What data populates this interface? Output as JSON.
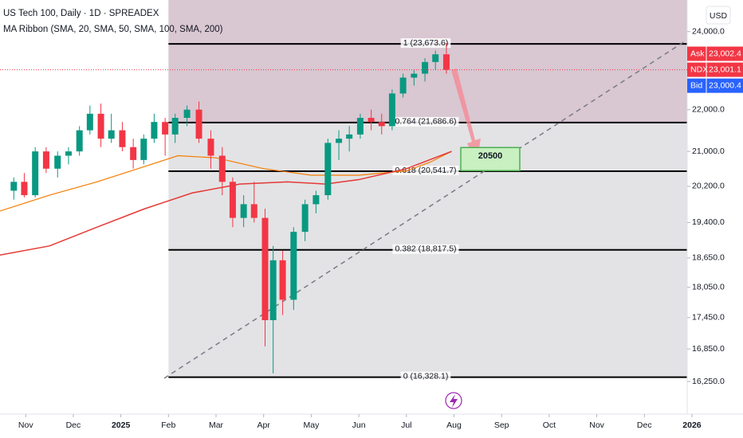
{
  "chart_data": {
    "type": "candlestick",
    "title": "US Tech 100, Daily · 1D · SPREADEX",
    "subtitle": "MA Ribbon (SMA, 20, SMA, 50, SMA, 100, SMA, 200)",
    "currency": "USD",
    "log_scale": true,
    "grid": false,
    "xlim": [
      0.46,
      14.9
    ],
    "ylim": [
      15670,
      24860
    ],
    "xticks": [
      {
        "value": 1,
        "label": "Nov"
      },
      {
        "value": 2,
        "label": "Dec"
      },
      {
        "value": 3,
        "label": "2025"
      },
      {
        "value": 4,
        "label": "Feb"
      },
      {
        "value": 5,
        "label": "Mar"
      },
      {
        "value": 6,
        "label": "Apr"
      },
      {
        "value": 7,
        "label": "May"
      },
      {
        "value": 8,
        "label": "Jun"
      },
      {
        "value": 9,
        "label": "Jul"
      },
      {
        "value": 10,
        "label": "Aug"
      },
      {
        "value": 11,
        "label": "Sep"
      },
      {
        "value": 12,
        "label": "Oct"
      },
      {
        "value": 13,
        "label": "Nov"
      },
      {
        "value": 14,
        "label": "Dec"
      },
      {
        "value": 15,
        "label": "2026"
      }
    ],
    "yticks": [
      {
        "value": 24000,
        "label": "24,000.0"
      },
      {
        "value": 22000,
        "label": "22,000.0"
      },
      {
        "value": 21000,
        "label": "21,000.0"
      },
      {
        "value": 20200,
        "label": "20,200.0"
      },
      {
        "value": 19400,
        "label": "19,400.0"
      },
      {
        "value": 18650,
        "label": "18,650.0"
      },
      {
        "value": 18050,
        "label": "18,050.0"
      },
      {
        "value": 17450,
        "label": "17,450.0"
      },
      {
        "value": 16850,
        "label": "16,850.0"
      },
      {
        "value": 16250,
        "label": "16,250.0"
      }
    ],
    "up_color": "#089981",
    "down_color": "#f23645",
    "x": [
      0.75,
      0.97,
      1.2,
      1.43,
      1.67,
      1.9,
      2.13,
      2.35,
      2.58,
      2.8,
      3.03,
      3.26,
      3.48,
      3.7,
      3.93,
      4.14,
      4.39,
      4.64,
      4.89,
      5.13,
      5.35,
      5.58,
      5.8,
      6.03,
      6.2,
      6.4,
      6.63,
      6.87,
      7.1,
      7.35,
      7.58,
      7.8,
      8.03,
      8.26,
      8.48,
      8.7,
      8.93,
      9.16,
      9.39,
      9.61,
      9.84
    ],
    "open": [
      20100,
      20300,
      20000,
      21000,
      20600,
      20900,
      21000,
      21500,
      21900,
      21300,
      21500,
      21100,
      20800,
      21300,
      21700,
      21400,
      21800,
      22000,
      21300,
      20900,
      20300,
      19500,
      19800,
      19500,
      17400,
      18600,
      17800,
      19200,
      19800,
      20000,
      21200,
      21300,
      21400,
      21800,
      21700,
      21600,
      22400,
      22800,
      22900,
      23200,
      23400
    ],
    "high": [
      20400,
      20500,
      21100,
      21100,
      21000,
      21100,
      21600,
      22100,
      22150,
      21900,
      21700,
      21300,
      21400,
      21900,
      21800,
      21900,
      22100,
      22200,
      21500,
      21100,
      20400,
      20000,
      20300,
      19700,
      18900,
      18800,
      19300,
      19900,
      20100,
      21300,
      21500,
      21600,
      21900,
      22000,
      21900,
      22500,
      22900,
      23000,
      23300,
      23500,
      23700
    ],
    "low": [
      19900,
      19950,
      19950,
      20500,
      20400,
      20700,
      20900,
      21400,
      21100,
      21200,
      21000,
      20600,
      20700,
      21200,
      20900,
      21200,
      21600,
      21200,
      20600,
      20000,
      19300,
      19300,
      19400,
      16900,
      16400,
      17500,
      17600,
      19000,
      19600,
      19900,
      20800,
      21000,
      21300,
      21500,
      21400,
      21500,
      22300,
      22600,
      22700,
      23000,
      22900
    ],
    "close": [
      20300,
      20000,
      21000,
      20600,
      20900,
      21000,
      21500,
      21900,
      21300,
      21500,
      21100,
      20800,
      21300,
      21700,
      21400,
      21800,
      22000,
      21300,
      20900,
      20300,
      19500,
      19800,
      19500,
      17400,
      18600,
      17800,
      19200,
      19800,
      20000,
      21200,
      21300,
      21400,
      21800,
      21700,
      21600,
      22400,
      22800,
      22900,
      23200,
      23400,
      23000
    ],
    "ma_lines": [
      {
        "color": "#f57c00",
        "x": [
          0.46,
          1.5,
          2.5,
          3.5,
          4.2,
          5,
          6,
          7,
          8,
          9,
          9.5,
          9.95
        ],
        "values": [
          19650,
          20000,
          20300,
          20650,
          20900,
          20850,
          20600,
          20450,
          20450,
          20550,
          20750,
          21000
        ]
      },
      {
        "color": "#e53935",
        "x": [
          0.46,
          1.5,
          2.5,
          3.5,
          4.5,
          5.5,
          6.5,
          7.3,
          8,
          9,
          9.95
        ],
        "values": [
          18710,
          18900,
          19300,
          19700,
          20050,
          20250,
          20300,
          20250,
          20350,
          20600,
          21000
        ]
      }
    ],
    "fib": {
      "x_range": [
        4.0,
        14.9
      ],
      "levels": [
        {
          "label": "1 (23,673.6)",
          "value": 23673.6
        },
        {
          "label": "0.764 (21,686.6)",
          "value": 21686.6
        },
        {
          "label": "0.618 (20,541.7)",
          "value": 20541.7
        },
        {
          "label": "0.382 (18,817.5)",
          "value": 18817.5
        },
        {
          "label": "0 (16,328.1)",
          "value": 16328.1
        }
      ]
    },
    "target": {
      "value": 20500
    },
    "price_labels": [
      {
        "name": "Ask",
        "value": 23002.4,
        "label": "23,002.4",
        "color": "#f23645"
      },
      {
        "name": "NDX",
        "value": 23001.1,
        "label": "23,001.1",
        "color": "#f23645"
      },
      {
        "name": "Bid",
        "value": 23000.4,
        "label": "23,000.4",
        "color": "#2962ff"
      }
    ]
  }
}
